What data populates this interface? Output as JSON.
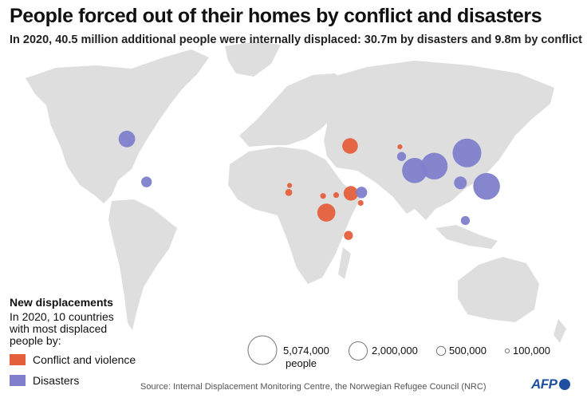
{
  "title": "People forced out of their homes by conflict and disasters",
  "subtitle": "In 2020, 40.5 million additional people were internally displaced: 30.7m by disasters and 9.8m by conflict",
  "colors": {
    "conflict": "#e45f3c",
    "disasters": "#7f7fcc",
    "land": "#dedede",
    "water": "#ffffff"
  },
  "legend": {
    "title": "New displacements",
    "description": "In 2020, 10 countries with most displaced people by:",
    "conflict_label": "Conflict and violence",
    "disasters_label": "Disasters"
  },
  "size_legend": [
    {
      "value": 5074000,
      "label": "5,074,000",
      "sublabel": "people"
    },
    {
      "value": 2000000,
      "label": "2,000,000"
    },
    {
      "value": 500000,
      "label": "500,000"
    },
    {
      "value": 100000,
      "label": "100,000"
    }
  ],
  "bubbles": [
    {
      "category": "disasters",
      "value": 1700000,
      "lon": -98,
      "lat": 39
    },
    {
      "category": "disasters",
      "value": 700000,
      "lon": -86,
      "lat": 14.5
    },
    {
      "category": "conflict",
      "value": 1500000,
      "lon": 38.5,
      "lat": 35
    },
    {
      "category": "conflict",
      "value": 150000,
      "lon": 69,
      "lat": 34.5
    },
    {
      "category": "disasters",
      "value": 500000,
      "lon": 70,
      "lat": 29
    },
    {
      "category": "disasters",
      "value": 3900000,
      "lon": 78,
      "lat": 21
    },
    {
      "category": "disasters",
      "value": 4400000,
      "lon": 90,
      "lat": 23.5
    },
    {
      "category": "disasters",
      "value": 5074000,
      "lon": 110,
      "lat": 31
    },
    {
      "category": "disasters",
      "value": 1000000,
      "lon": 106,
      "lat": 14
    },
    {
      "category": "disasters",
      "value": 4400000,
      "lon": 122,
      "lat": 12
    },
    {
      "category": "disasters",
      "value": 500000,
      "lon": 109,
      "lat": -7.5
    },
    {
      "category": "conflict",
      "value": 150000,
      "lon": 1.5,
      "lat": 12.5
    },
    {
      "category": "conflict",
      "value": 300000,
      "lon": 1,
      "lat": 8.5
    },
    {
      "category": "conflict",
      "value": 200000,
      "lon": 22,
      "lat": 6.5
    },
    {
      "category": "conflict",
      "value": 200000,
      "lon": 30,
      "lat": 7
    },
    {
      "category": "conflict",
      "value": 1300000,
      "lon": 39,
      "lat": 8
    },
    {
      "category": "disasters",
      "value": 800000,
      "lon": 45.5,
      "lat": 8.5
    },
    {
      "category": "conflict",
      "value": 200000,
      "lon": 45,
      "lat": 2.5
    },
    {
      "category": "conflict",
      "value": 2000000,
      "lon": 24,
      "lat": -3
    },
    {
      "category": "conflict",
      "value": 500000,
      "lon": 37.5,
      "lat": -16
    }
  ],
  "source": "Source: Internal Displacement Monitoring Centre, the Norwegian Refugee Council (NRC)",
  "logo": "AFP"
}
